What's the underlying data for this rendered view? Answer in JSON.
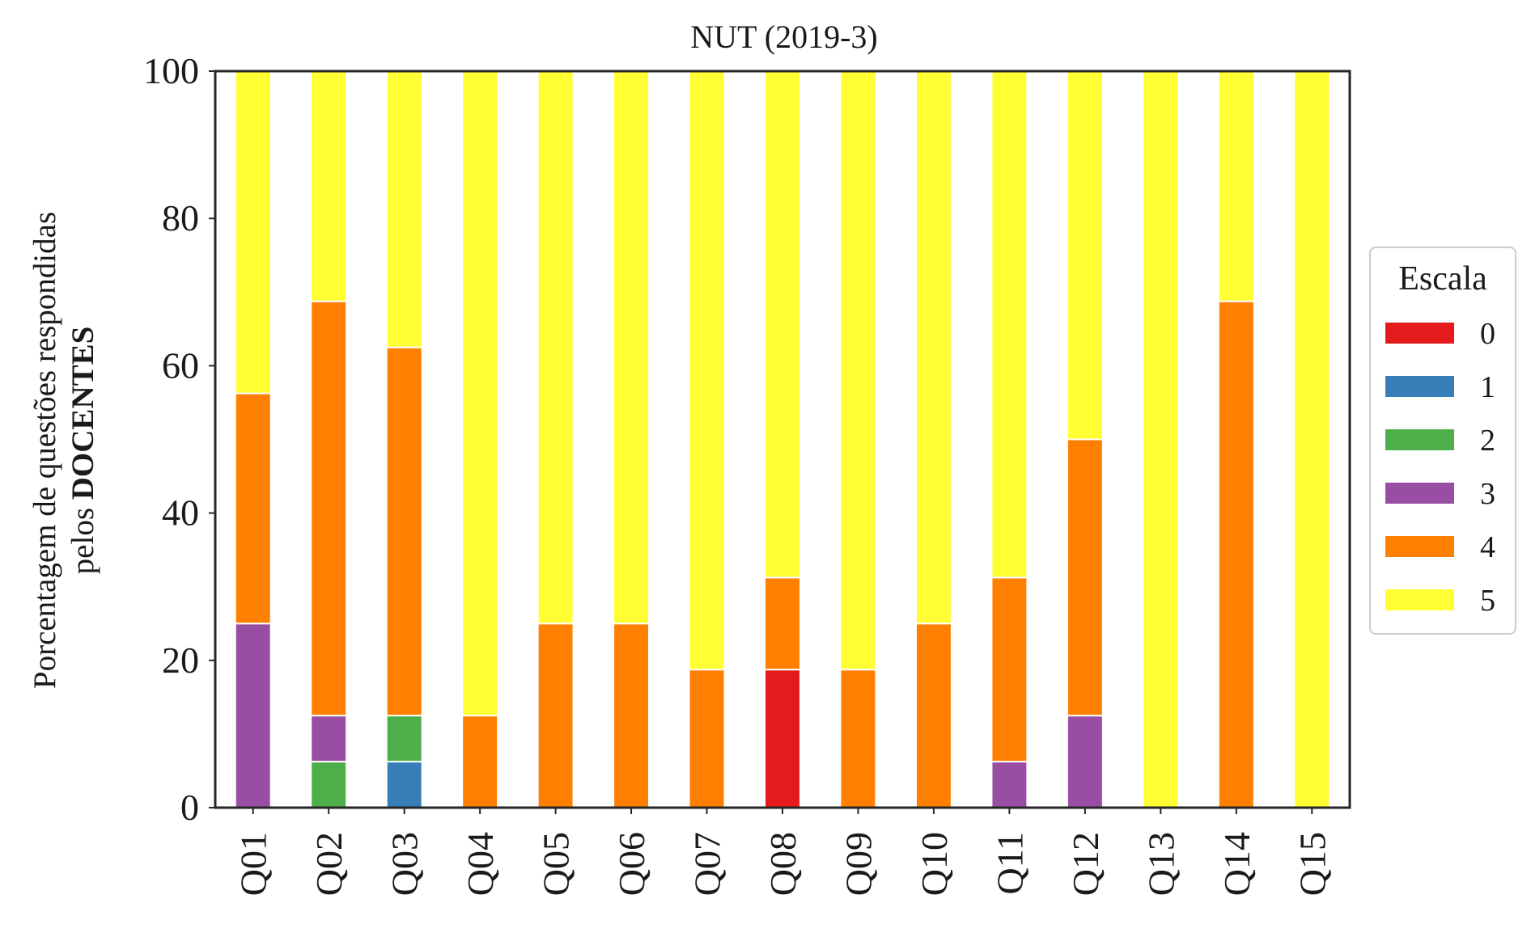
{
  "chart_data": {
    "type": "bar",
    "stacked": true,
    "title": "NUT (2019-3)",
    "ylabel_line1": "Porcentagem de questões respondidas",
    "ylabel_line2_prefix": "pelos ",
    "ylabel_line2_bold": "DOCENTES",
    "xlabel": "",
    "ylim": [
      0,
      100
    ],
    "yticks": [
      0,
      20,
      40,
      60,
      80,
      100
    ],
    "grid": false,
    "legend": {
      "title": "Escala",
      "position": "right"
    },
    "categories": [
      "Q01",
      "Q02",
      "Q03",
      "Q04",
      "Q05",
      "Q06",
      "Q07",
      "Q08",
      "Q09",
      "Q10",
      "Q11",
      "Q12",
      "Q13",
      "Q14",
      "Q15"
    ],
    "series": [
      {
        "name": "0",
        "color": "#e41a1c",
        "values": [
          0,
          0,
          0,
          0,
          0,
          0,
          0,
          18.75,
          0,
          0,
          0,
          0,
          0,
          0,
          0
        ]
      },
      {
        "name": "1",
        "color": "#377eb8",
        "values": [
          0,
          0,
          6.25,
          0,
          0,
          0,
          0,
          0,
          0,
          0,
          0,
          0,
          0,
          0,
          0
        ]
      },
      {
        "name": "2",
        "color": "#4daf4a",
        "values": [
          0,
          6.25,
          6.25,
          0,
          0,
          0,
          0,
          0,
          0,
          0,
          0,
          0,
          0,
          0,
          0
        ]
      },
      {
        "name": "3",
        "color": "#984ea3",
        "values": [
          25,
          6.25,
          0,
          0,
          0,
          0,
          0,
          0,
          0,
          0,
          6.25,
          12.5,
          0,
          0,
          0
        ]
      },
      {
        "name": "4",
        "color": "#ff7f00",
        "values": [
          31.25,
          56.25,
          50,
          12.5,
          25,
          25,
          18.75,
          12.5,
          18.75,
          25,
          25,
          37.5,
          0,
          68.75,
          0
        ]
      },
      {
        "name": "5",
        "color": "#ffff33",
        "values": [
          43.75,
          31.25,
          37.5,
          87.5,
          75,
          75,
          81.25,
          68.75,
          81.25,
          75,
          68.75,
          50,
          100,
          31.25,
          100
        ]
      }
    ]
  }
}
